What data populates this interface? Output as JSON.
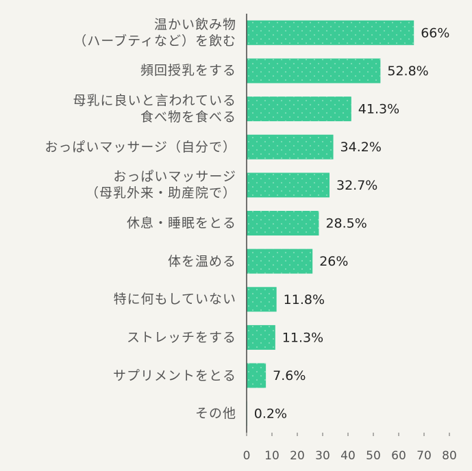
{
  "chart_data": {
    "type": "bar",
    "orientation": "horizontal",
    "categories": [
      "温かい飲み物\n（ハーブティなど）を飲む",
      "頻回授乳をする",
      "母乳に良いと言われている\n食べ物を食べる",
      "おっぱいマッサージ（自分で）",
      "おっぱいマッサージ\n（母乳外来・助産院で）",
      "休息・睡眠をとる",
      "体を温める",
      "特に何もしていない",
      "ストレッチをする",
      "サプリメントをとる",
      "その他"
    ],
    "values": [
      66,
      52.8,
      41.3,
      34.2,
      32.7,
      28.5,
      26,
      11.8,
      11.3,
      7.6,
      0.2
    ],
    "value_labels": [
      "66%",
      "52.8%",
      "41.3%",
      "34.2%",
      "32.7%",
      "28.5%",
      "26%",
      "11.8%",
      "11.3%",
      "7.6%",
      "0.2%"
    ],
    "color": "#3ccb96",
    "xlim": [
      0,
      80
    ],
    "xticks": [
      0,
      10,
      20,
      30,
      40,
      50,
      60,
      70,
      80
    ],
    "grid": false
  }
}
